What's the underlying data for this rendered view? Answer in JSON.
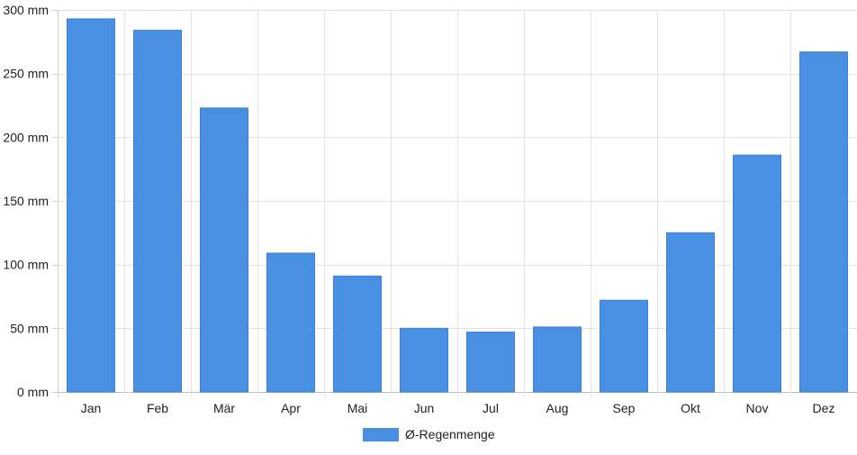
{
  "chart_data": {
    "type": "bar",
    "title": "",
    "xlabel": "",
    "ylabel": "",
    "categories": [
      "Jan",
      "Feb",
      "Mär",
      "Apr",
      "Mai",
      "Jun",
      "Jul",
      "Aug",
      "Sep",
      "Okt",
      "Nov",
      "Dez"
    ],
    "series": [
      {
        "name": "Ø-Regenmenge",
        "color": "#4a90e2",
        "values": [
          293,
          284,
          223,
          109,
          91,
          50,
          47,
          51,
          72,
          125,
          186,
          267
        ]
      }
    ],
    "ylim": [
      0,
      300
    ],
    "yticks": [
      0,
      50,
      100,
      150,
      200,
      250,
      300
    ],
    "ytick_labels": [
      "0 mm",
      "50 mm",
      "100 mm",
      "150 mm",
      "200 mm",
      "250 mm",
      "300 mm"
    ],
    "grid": true,
    "legend_position": "bottom-center"
  }
}
